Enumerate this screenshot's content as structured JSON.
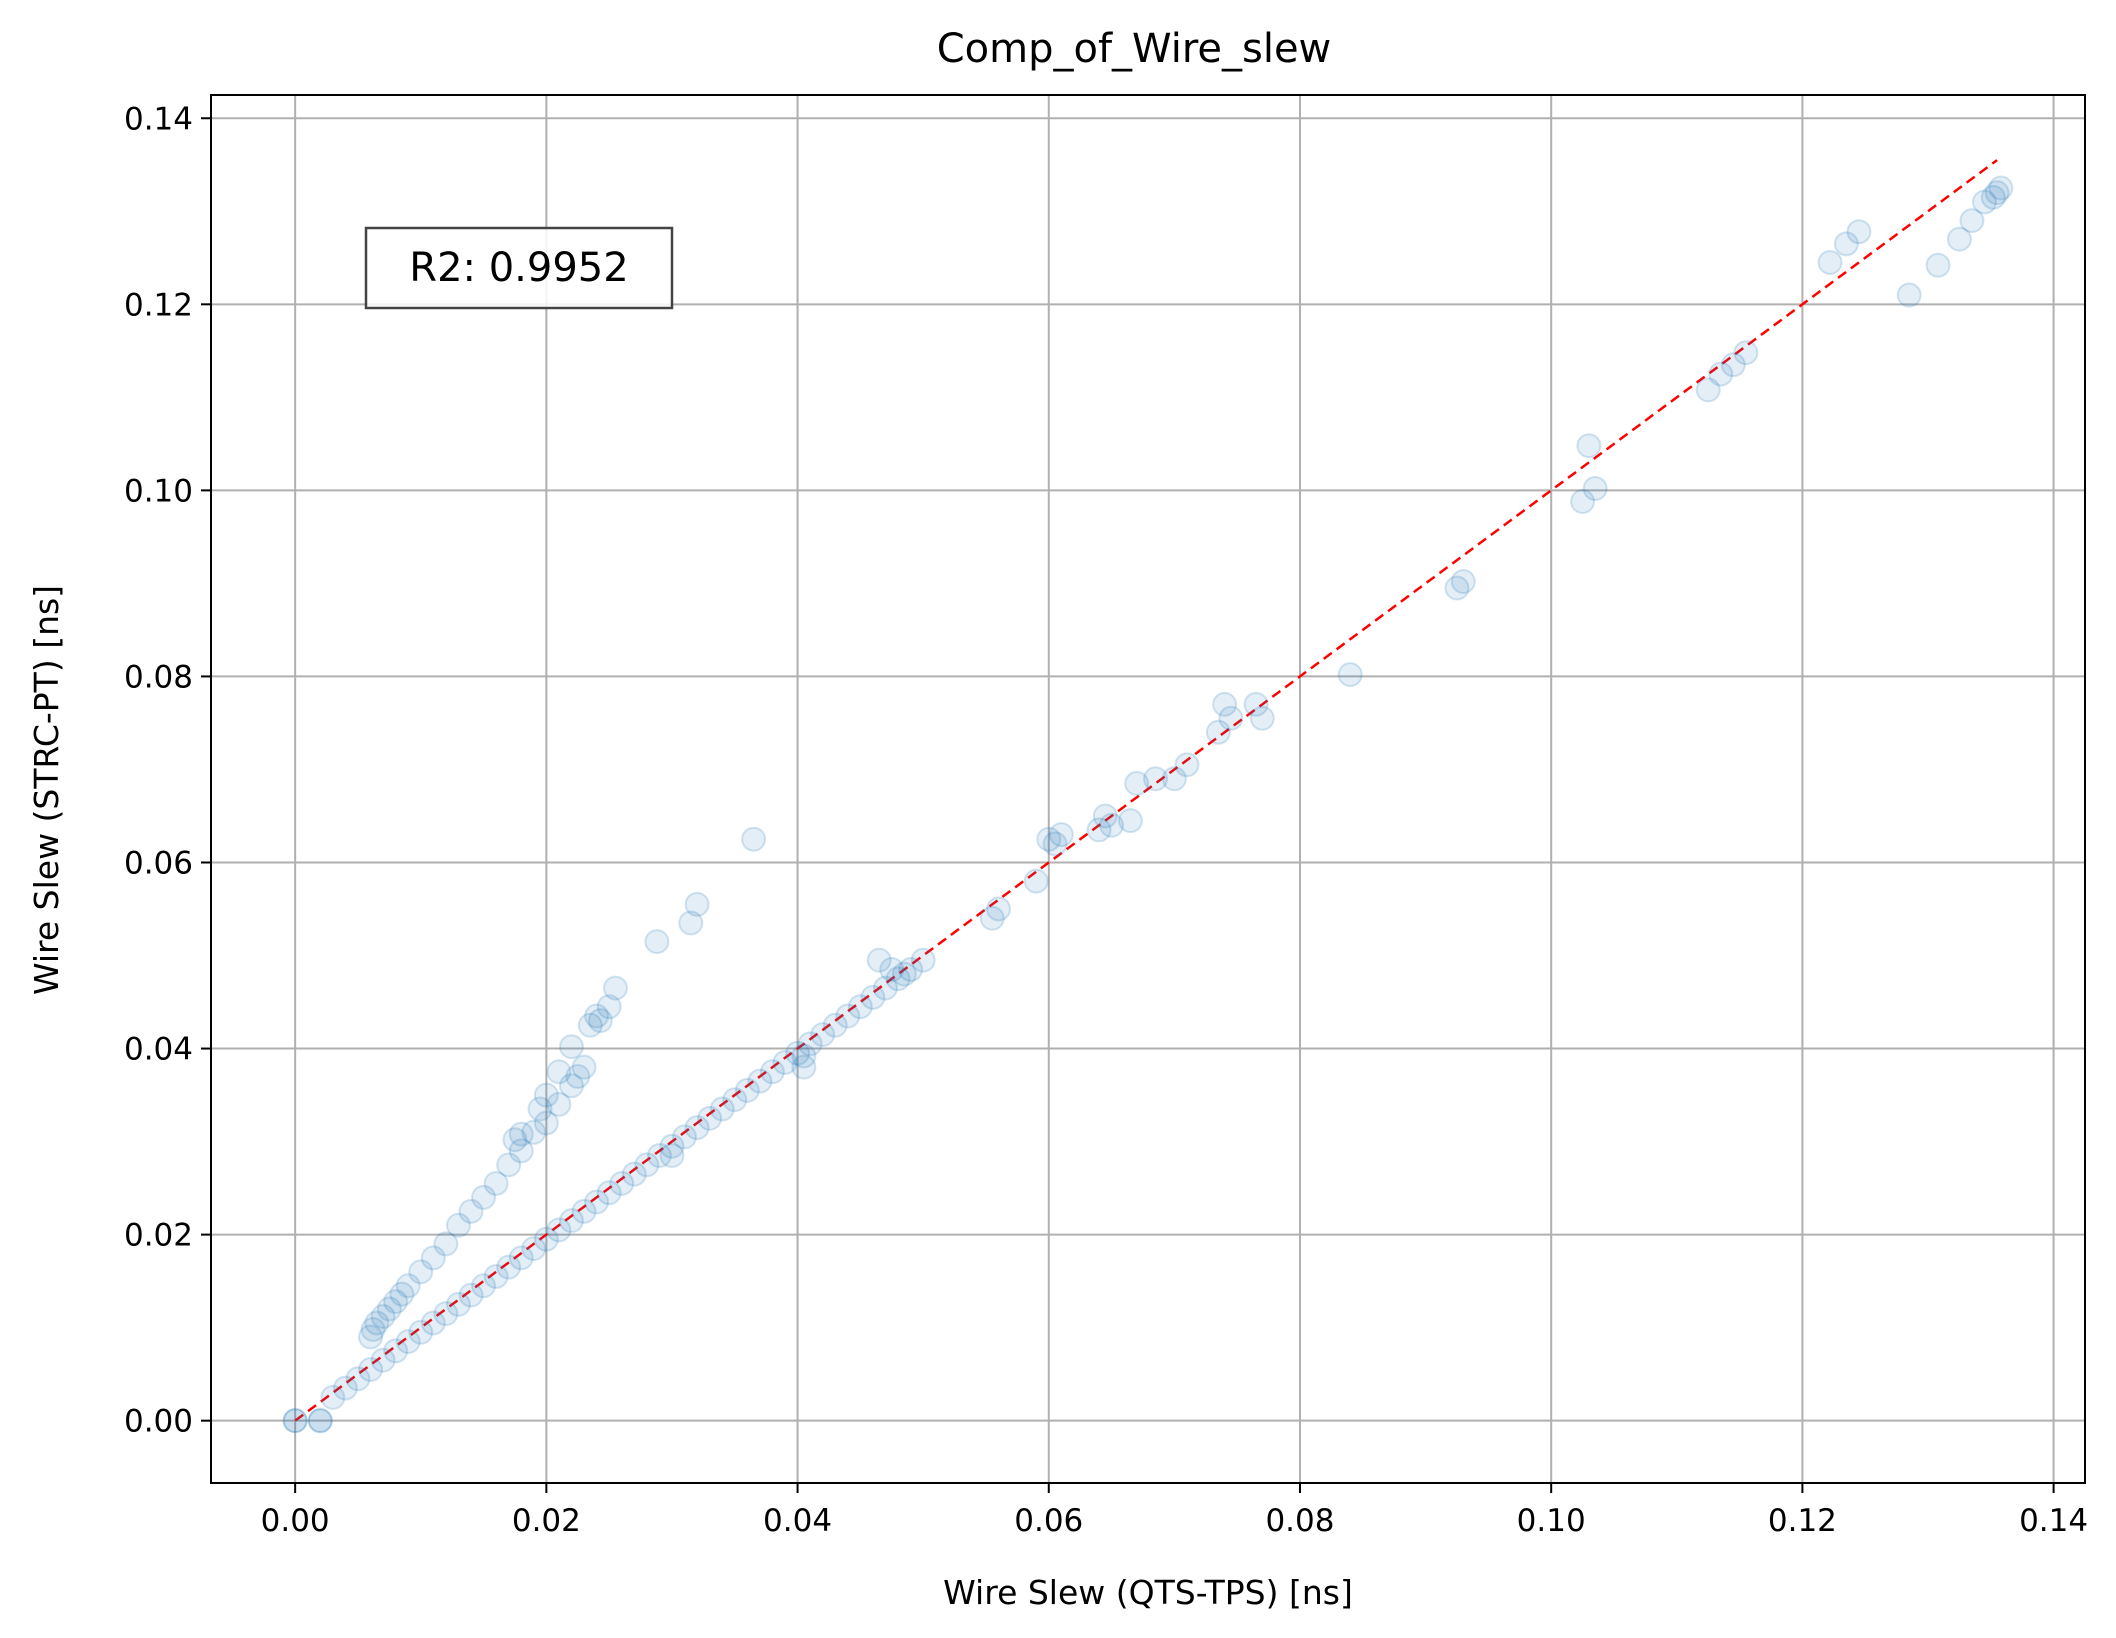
{
  "chart_data": {
    "type": "scatter",
    "title": "Comp_of_Wire_slew",
    "xlabel": "Wire Slew (QTS-TPS) [ns]",
    "ylabel": "Wire Slew (STRC-PT) [ns]",
    "xlim": [
      -0.0067,
      0.1425
    ],
    "ylim": [
      -0.0067,
      0.1425
    ],
    "xticks": [
      "0.00",
      "0.02",
      "0.04",
      "0.06",
      "0.08",
      "0.10",
      "0.12",
      "0.14"
    ],
    "yticks": [
      "0.00",
      "0.02",
      "0.04",
      "0.06",
      "0.08",
      "0.10",
      "0.12",
      "0.14"
    ],
    "grid": true,
    "point_color": "#1f77b4",
    "point_alpha": 0.12,
    "annotation": "R2: 0.9952",
    "reference_line": {
      "style": "dashed",
      "color": "#ff0000",
      "from": [
        0,
        0
      ],
      "to": [
        0.1355,
        0.1355
      ]
    },
    "series": [
      {
        "x": [
          0.0,
          0.0,
          0.002,
          0.002,
          0.003,
          0.004,
          0.005,
          0.006,
          0.007,
          0.008,
          0.009,
          0.01,
          0.011,
          0.012,
          0.013,
          0.014,
          0.015,
          0.016,
          0.017,
          0.018,
          0.019,
          0.02,
          0.021,
          0.022,
          0.023,
          0.024,
          0.025,
          0.026,
          0.027,
          0.028,
          0.029,
          0.03,
          0.031,
          0.032,
          0.033,
          0.034,
          0.035,
          0.036,
          0.037,
          0.038,
          0.039,
          0.04,
          0.041,
          0.042,
          0.043,
          0.044,
          0.045,
          0.046,
          0.047,
          0.048,
          0.049,
          0.05,
          0.006,
          0.0062,
          0.0065,
          0.007,
          0.0075,
          0.008,
          0.0085,
          0.009,
          0.01,
          0.011,
          0.012,
          0.013,
          0.014,
          0.015,
          0.016,
          0.017,
          0.018,
          0.019,
          0.02,
          0.021,
          0.022,
          0.023,
          0.0235,
          0.024,
          0.03,
          0.0405,
          0.0405,
          0.0465,
          0.0475,
          0.0485,
          0.0555,
          0.056,
          0.059,
          0.06,
          0.0605,
          0.061,
          0.064,
          0.0645,
          0.065,
          0.0665,
          0.067,
          0.0685,
          0.07,
          0.071,
          0.0735,
          0.074,
          0.0745,
          0.0765,
          0.077,
          0.084,
          0.0925,
          0.093,
          0.1025,
          0.103,
          0.1035,
          0.1125,
          0.1135,
          0.1145,
          0.1155,
          0.1222,
          0.1235,
          0.1245,
          0.1285,
          0.1308,
          0.1325,
          0.1335,
          0.1345,
          0.1352,
          0.1355,
          0.1358,
          0.0365,
          0.0315,
          0.032,
          0.0288,
          0.0255,
          0.025,
          0.0243,
          0.022,
          0.021,
          0.0225,
          0.02,
          0.0195,
          0.018,
          0.0175
        ],
        "y": [
          0.0,
          0.0,
          0.0,
          0.0,
          0.0025,
          0.0035,
          0.0045,
          0.0055,
          0.0065,
          0.0075,
          0.0085,
          0.0095,
          0.0105,
          0.0115,
          0.0125,
          0.0135,
          0.0145,
          0.0155,
          0.0165,
          0.0175,
          0.0185,
          0.0195,
          0.0205,
          0.0215,
          0.0225,
          0.0235,
          0.0245,
          0.0255,
          0.0265,
          0.0275,
          0.0285,
          0.0295,
          0.0305,
          0.0315,
          0.0325,
          0.0335,
          0.0345,
          0.0355,
          0.0365,
          0.0375,
          0.0385,
          0.0395,
          0.0405,
          0.0415,
          0.0425,
          0.0435,
          0.0445,
          0.0455,
          0.0465,
          0.0475,
          0.0485,
          0.0495,
          0.009,
          0.0098,
          0.0105,
          0.0112,
          0.012,
          0.0128,
          0.0136,
          0.0145,
          0.016,
          0.0175,
          0.019,
          0.021,
          0.0225,
          0.024,
          0.0255,
          0.0275,
          0.029,
          0.031,
          0.032,
          0.034,
          0.036,
          0.038,
          0.0425,
          0.0435,
          0.0285,
          0.038,
          0.0392,
          0.0495,
          0.0485,
          0.048,
          0.054,
          0.055,
          0.058,
          0.0625,
          0.062,
          0.063,
          0.0635,
          0.065,
          0.064,
          0.0645,
          0.0685,
          0.069,
          0.069,
          0.0705,
          0.074,
          0.077,
          0.0755,
          0.077,
          0.0755,
          0.0802,
          0.0895,
          0.0902,
          0.0988,
          0.1048,
          0.1002,
          0.1108,
          0.1125,
          0.1135,
          0.1148,
          0.1245,
          0.1265,
          0.1278,
          0.121,
          0.1242,
          0.127,
          0.129,
          0.131,
          0.1315,
          0.132,
          0.1325,
          0.0625,
          0.0535,
          0.0555,
          0.0515,
          0.0465,
          0.0445,
          0.043,
          0.0402,
          0.0375,
          0.037,
          0.035,
          0.0335,
          0.0308,
          0.0302
        ]
      }
    ]
  }
}
